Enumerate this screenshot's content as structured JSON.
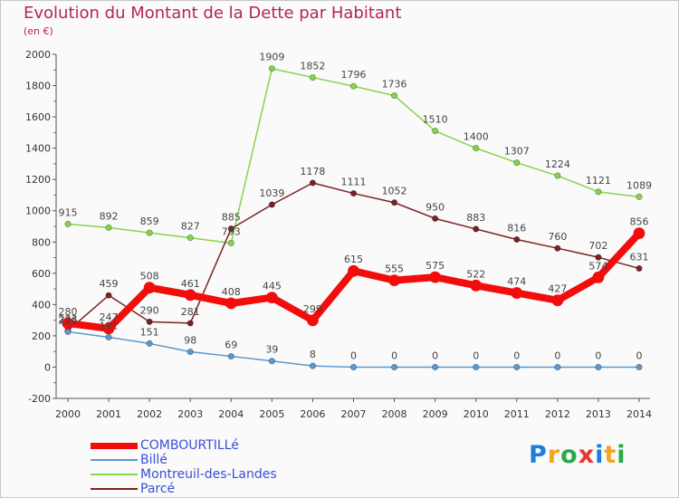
{
  "title": "Evolution du Montant de la Dette par Habitant",
  "subtitle": "(en €)",
  "logo": {
    "text": "Proxiti",
    "colors": [
      "#1e7fd8",
      "#f2a51f",
      "#2aa84a",
      "#e8372c",
      "#1e7fd8",
      "#f2a51f",
      "#2aa84a"
    ]
  },
  "chart_data": {
    "type": "line",
    "x": [
      "2000",
      "2001",
      "2002",
      "2003",
      "2004",
      "2005",
      "2006",
      "2007",
      "2008",
      "2009",
      "2010",
      "2011",
      "2012",
      "2013",
      "2014"
    ],
    "ylim": [
      -200,
      2000
    ],
    "yticks": [
      "-200",
      "0",
      "200",
      "400",
      "600",
      "800",
      "1000",
      "1200",
      "1400",
      "1600",
      "1800",
      "2000"
    ],
    "grid": false,
    "legend_position": "bottom-left",
    "series": [
      {
        "name": "Montreuil-des-Landes",
        "color": "#86d44a",
        "values": [
          915,
          892,
          859,
          827,
          793,
          1909,
          1852,
          1796,
          1736,
          1510,
          1400,
          1307,
          1224,
          1121,
          1089
        ],
        "labels": [
          "915",
          "892",
          "859",
          "827",
          "793",
          "1909",
          "1852",
          "1796",
          "1736",
          "1510",
          "1400",
          "1307",
          "1224",
          "1121",
          "1089"
        ]
      },
      {
        "name": "Parcé",
        "color": "#7a2222",
        "values": [
          233,
          459,
          290,
          281,
          885,
          1039,
          1178,
          1111,
          1052,
          950,
          883,
          816,
          760,
          702,
          631
        ],
        "labels": [
          "233",
          "459",
          "290",
          "281",
          "885",
          "1039",
          "1178",
          "1111",
          "1052",
          "950",
          "883",
          "816",
          "760",
          "702",
          "631"
        ]
      },
      {
        "name": "Billé",
        "color": "#5a9ad0",
        "values": [
          226,
          191,
          151,
          98,
          69,
          39,
          8,
          0,
          0,
          0,
          0,
          0,
          0,
          0,
          0
        ],
        "labels": [
          "226",
          "191",
          "151",
          "98",
          "69",
          "39",
          "8",
          "0",
          "0",
          "0",
          "0",
          "0",
          "0",
          "0",
          "0"
        ]
      },
      {
        "name": "COMBOURTILLé",
        "color": "#f20c0c",
        "values": [
          280,
          247,
          508,
          461,
          408,
          445,
          299,
          615,
          555,
          575,
          522,
          474,
          427,
          574,
          856
        ],
        "labels": [
          "280",
          "247",
          "508",
          "461",
          "408",
          "445",
          "299",
          "615",
          "555",
          "575",
          "522",
          "474",
          "427",
          "574",
          "856"
        ]
      }
    ]
  },
  "legend": [
    {
      "label": "COMBOURTILLé",
      "color": "#f20c0c"
    },
    {
      "label": "Billé",
      "color": "#5a9ad0"
    },
    {
      "label": "Montreuil-des-Landes",
      "color": "#86d44a"
    },
    {
      "label": "Parcé",
      "color": "#7a2222"
    }
  ]
}
